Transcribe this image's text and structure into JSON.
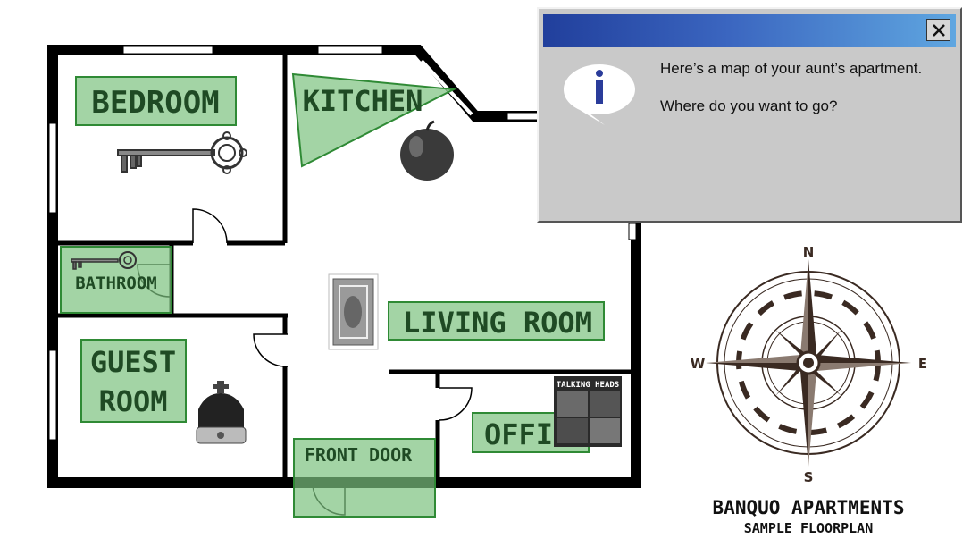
{
  "rooms": {
    "bedroom": "BEDROOM",
    "kitchen": "KITCHEN",
    "bathroom": "BATHROOM",
    "living_room": "LIVING ROOM",
    "guest_room_line1": "GUEST",
    "guest_room_line2": "ROOM",
    "office": "OFFICE",
    "front_door": "FRONT DOOR"
  },
  "album_cover": {
    "band": "TALKING HEADS"
  },
  "compass": {
    "north": "N",
    "south": "S",
    "east": "E",
    "west": "W"
  },
  "brand": {
    "title": "BANQUO APARTMENTS",
    "subtitle": "SAMPLE FLOORPLAN"
  },
  "dialog": {
    "line1": "Here’s a map of your aunt’s apartment.",
    "line2": "Where do you want to go?"
  },
  "colors": {
    "zone_fill": "#7cc27f",
    "zone_stroke": "#2f8a35",
    "label": "#1f4a24",
    "wall": "#000000"
  }
}
